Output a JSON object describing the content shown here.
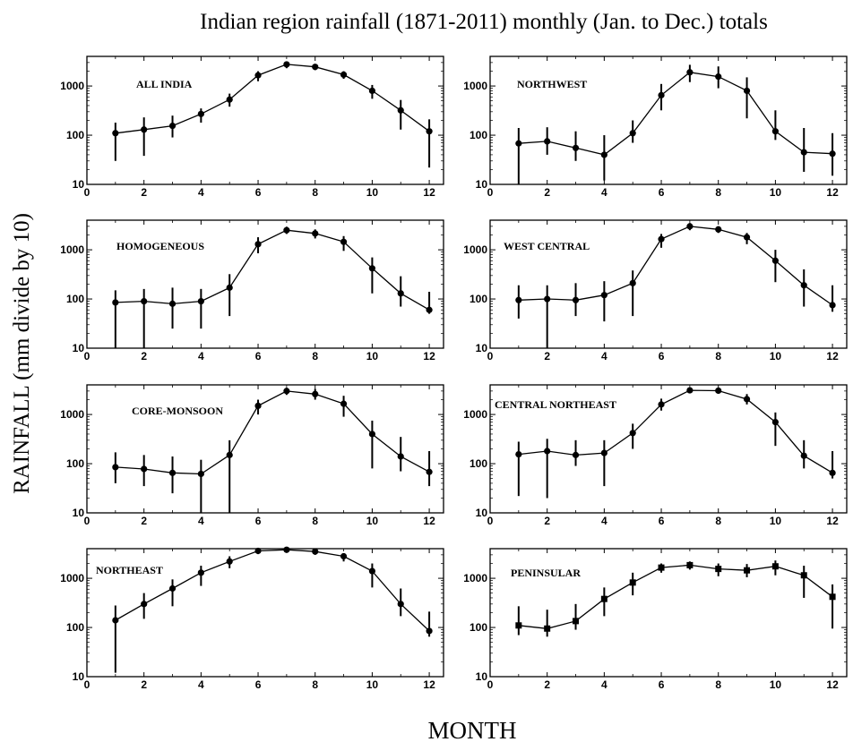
{
  "figure": {
    "title": "Indian region rainfall (1871-2011) monthly (Jan. to  Dec.) totals",
    "xlabel": "MONTH",
    "ylabel": "RAINFALL (mm divide by 10)"
  },
  "chart_data": [
    {
      "type": "line",
      "title": "ALL INDIA",
      "marker": "circle",
      "x": [
        1,
        2,
        3,
        4,
        5,
        6,
        7,
        8,
        9,
        10,
        11,
        12
      ],
      "y": [
        110,
        130,
        155,
        270,
        530,
        1650,
        2750,
        2450,
        1700,
        800,
        320,
        120
      ],
      "y_err_low": [
        30,
        38,
        90,
        180,
        380,
        1250,
        2300,
        2100,
        1400,
        550,
        130,
        22
      ],
      "y_err_high": [
        180,
        230,
        250,
        350,
        700,
        2000,
        3000,
        2750,
        2000,
        1050,
        520,
        210
      ],
      "xlim": [
        0,
        12.5
      ],
      "ylim": [
        10,
        4000
      ],
      "yscale": "log",
      "xticks": [
        "0",
        "2",
        "4",
        "6",
        "8",
        "10",
        "12"
      ],
      "yticks": [
        "10",
        "100",
        "1000"
      ]
    },
    {
      "type": "line",
      "title": "NORTHWEST",
      "marker": "circle",
      "x": [
        1,
        2,
        3,
        4,
        5,
        6,
        7,
        8,
        9,
        10,
        11,
        12
      ],
      "y": [
        68,
        75,
        55,
        40,
        110,
        650,
        1900,
        1550,
        800,
        120,
        45,
        42
      ],
      "y_err_low": [
        10,
        40,
        30,
        12,
        70,
        320,
        1200,
        900,
        220,
        80,
        18,
        15
      ],
      "y_err_high": [
        140,
        145,
        120,
        100,
        200,
        1100,
        2700,
        2500,
        1500,
        320,
        140,
        110
      ],
      "xlim": [
        0,
        12.5
      ],
      "ylim": [
        10,
        4000
      ],
      "yscale": "log",
      "xticks": [
        "0",
        "2",
        "4",
        "6",
        "8",
        "10",
        "12"
      ],
      "yticks": [
        "10",
        "100",
        "1000"
      ]
    },
    {
      "type": "line",
      "title": "HOMOGENEOUS",
      "marker": "circle",
      "x": [
        1,
        2,
        3,
        4,
        5,
        6,
        7,
        8,
        9,
        10,
        11,
        12
      ],
      "y": [
        85,
        90,
        80,
        90,
        170,
        1300,
        2500,
        2150,
        1450,
        420,
        130,
        60
      ],
      "y_err_low": [
        10,
        10,
        25,
        25,
        45,
        850,
        2100,
        1700,
        950,
        130,
        70,
        50
      ],
      "y_err_high": [
        150,
        160,
        170,
        160,
        320,
        1800,
        2950,
        2600,
        1900,
        700,
        290,
        140
      ],
      "xlim": [
        0,
        12.5
      ],
      "ylim": [
        10,
        4000
      ],
      "yscale": "log",
      "xticks": [
        "0",
        "2",
        "4",
        "6",
        "8",
        "10",
        "12"
      ],
      "yticks": [
        "10",
        "100",
        "1000"
      ]
    },
    {
      "type": "line",
      "title": "WEST  CENTRAL",
      "marker": "circle",
      "x": [
        1,
        2,
        3,
        4,
        5,
        6,
        7,
        8,
        9,
        10,
        11,
        12
      ],
      "y": [
        95,
        100,
        95,
        120,
        210,
        1650,
        3000,
        2600,
        1800,
        600,
        190,
        75
      ],
      "y_err_low": [
        40,
        10,
        45,
        35,
        45,
        1100,
        2500,
        2200,
        1300,
        220,
        70,
        55
      ],
      "y_err_high": [
        190,
        190,
        210,
        230,
        380,
        2100,
        3500,
        3000,
        2200,
        1000,
        400,
        190
      ],
      "xlim": [
        0,
        12.5
      ],
      "ylim": [
        10,
        4000
      ],
      "yscale": "log",
      "xticks": [
        "0",
        "2",
        "4",
        "6",
        "8",
        "10",
        "12"
      ],
      "yticks": [
        "10",
        "100",
        "1000"
      ]
    },
    {
      "type": "line",
      "title": "CORE-MONSOON",
      "marker": "circle",
      "x": [
        1,
        2,
        3,
        4,
        5,
        6,
        7,
        8,
        9,
        10,
        11,
        12
      ],
      "y": [
        85,
        78,
        65,
        62,
        150,
        1500,
        3000,
        2600,
        1650,
        400,
        140,
        68
      ],
      "y_err_low": [
        40,
        35,
        25,
        10,
        10,
        1000,
        2500,
        2000,
        900,
        80,
        70,
        35
      ],
      "y_err_high": [
        170,
        150,
        140,
        120,
        300,
        2000,
        3500,
        3300,
        2400,
        750,
        350,
        180
      ],
      "xlim": [
        0,
        12.5
      ],
      "ylim": [
        10,
        4000
      ],
      "yscale": "log",
      "xticks": [
        "0",
        "2",
        "4",
        "6",
        "8",
        "10",
        "12"
      ],
      "yticks": [
        "10",
        "100",
        "1000"
      ]
    },
    {
      "type": "line",
      "title": "CENTRAL   NORTHEAST",
      "marker": "circle",
      "x": [
        1,
        2,
        3,
        4,
        5,
        6,
        7,
        8,
        9,
        10,
        11,
        12
      ],
      "y": [
        155,
        180,
        150,
        165,
        420,
        1600,
        3100,
        3050,
        2050,
        700,
        145,
        65
      ],
      "y_err_low": [
        22,
        20,
        90,
        35,
        200,
        1200,
        2700,
        2700,
        1600,
        230,
        80,
        50
      ],
      "y_err_high": [
        280,
        320,
        300,
        300,
        650,
        2100,
        3500,
        3500,
        2600,
        1100,
        300,
        180
      ],
      "xlim": [
        0,
        12.5
      ],
      "ylim": [
        10,
        4000
      ],
      "yscale": "log",
      "xticks": [
        "0",
        "2",
        "4",
        "6",
        "8",
        "10",
        "12"
      ],
      "yticks": [
        "10",
        "100",
        "1000"
      ]
    },
    {
      "type": "line",
      "title": "NORTHEAST",
      "marker": "circle",
      "x": [
        1,
        2,
        3,
        4,
        5,
        6,
        7,
        8,
        9,
        10,
        11,
        12
      ],
      "y": [
        140,
        300,
        620,
        1300,
        2200,
        3600,
        3800,
        3500,
        2800,
        1400,
        300,
        85
      ],
      "y_err_low": [
        12,
        150,
        270,
        700,
        1600,
        3100,
        3300,
        3000,
        2200,
        650,
        170,
        65
      ],
      "y_err_high": [
        280,
        500,
        950,
        1800,
        2800,
        3900,
        3950,
        3900,
        3200,
        2000,
        620,
        210
      ],
      "xlim": [
        0,
        12.5
      ],
      "ylim": [
        10,
        4000
      ],
      "yscale": "log",
      "xticks": [
        "0",
        "2",
        "4",
        "6",
        "8",
        "10",
        "12"
      ],
      "yticks": [
        "10",
        "100",
        "1000"
      ]
    },
    {
      "type": "line",
      "title": "PENINSULAR",
      "marker": "square",
      "x": [
        1,
        2,
        3,
        4,
        5,
        6,
        7,
        8,
        9,
        10,
        11,
        12
      ],
      "y": [
        110,
        95,
        135,
        380,
        820,
        1650,
        1850,
        1550,
        1450,
        1750,
        1150,
        420
      ],
      "y_err_low": [
        70,
        65,
        90,
        170,
        450,
        1300,
        1500,
        1100,
        1050,
        1150,
        400,
        95
      ],
      "y_err_high": [
        270,
        230,
        300,
        650,
        1300,
        2000,
        2200,
        2000,
        1950,
        2300,
        1800,
        750
      ],
      "xlim": [
        0,
        12.5
      ],
      "ylim": [
        10,
        4000
      ],
      "yscale": "log",
      "xticks": [
        "0",
        "2",
        "4",
        "6",
        "8",
        "10",
        "12"
      ],
      "yticks": [
        "10",
        "100",
        "1000"
      ]
    }
  ]
}
